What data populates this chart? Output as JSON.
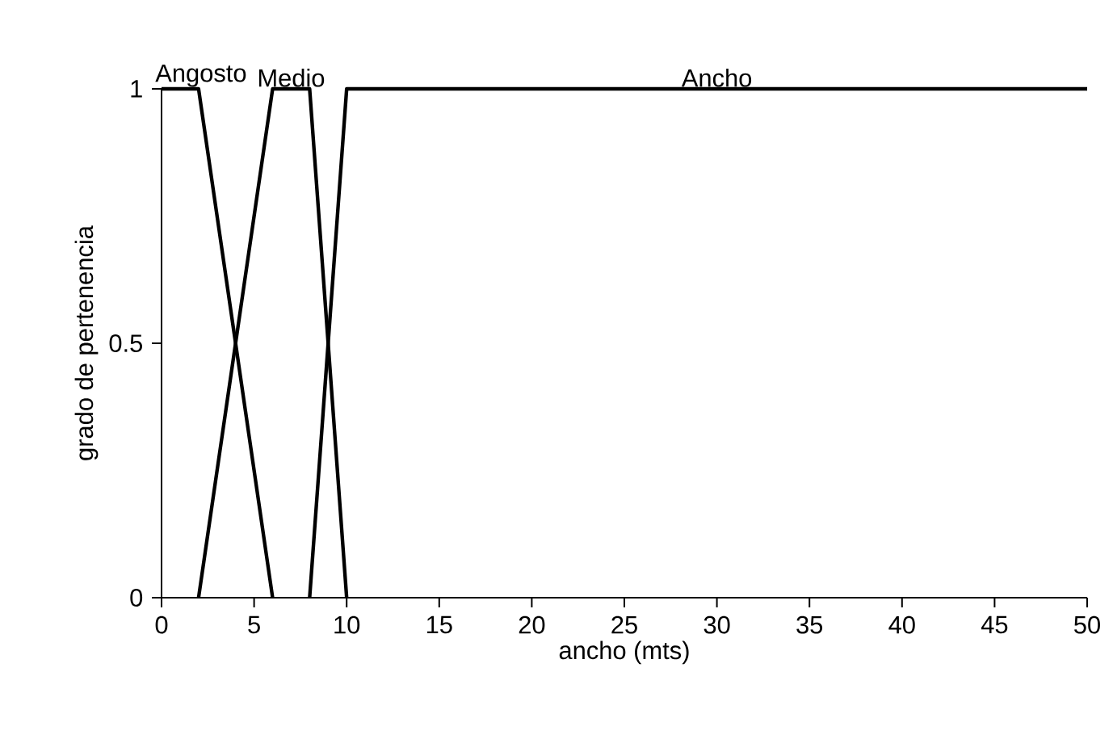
{
  "chart_data": {
    "type": "line",
    "xlabel": "ancho (mts)",
    "ylabel": "grado de pertenencia",
    "xlim": [
      0,
      50
    ],
    "xticks": [
      0,
      5,
      10,
      15,
      20,
      25,
      30,
      35,
      40,
      45,
      50
    ],
    "ylim": [
      0,
      1
    ],
    "yticks": [
      0,
      {
        "value": 0.5,
        "label": "0.5"
      },
      1
    ],
    "grid": false,
    "legend": false,
    "marker": "none",
    "line_style": "solid",
    "series": [
      {
        "name": "Angosto",
        "color": "#000000",
        "x": [
          0,
          2,
          6
        ],
        "values": [
          1,
          1,
          0
        ]
      },
      {
        "name": "Medio",
        "color": "#000000",
        "x": [
          2,
          6,
          8,
          10
        ],
        "values": [
          0,
          1,
          1,
          0
        ]
      },
      {
        "name": "Ancho",
        "color": "#000000",
        "x": [
          8,
          10,
          50
        ],
        "values": [
          0,
          1,
          1
        ]
      }
    ]
  }
}
